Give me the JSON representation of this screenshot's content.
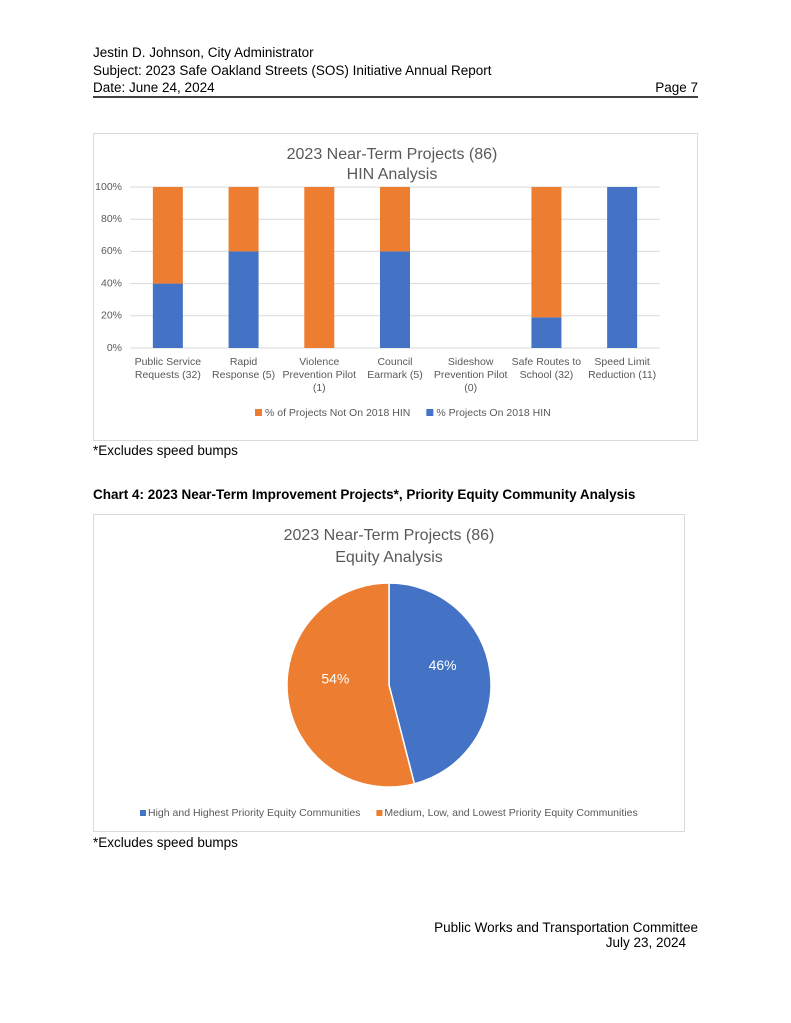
{
  "header": {
    "lines": [
      "Jestin D. Johnson, City Administrator",
      "Subject: 2023 Safe Oakland Streets (SOS) Initiative Annual Report",
      "Date:  June 24, 2024"
    ],
    "page": "Page 7"
  },
  "chart_data": [
    {
      "type": "bar",
      "stacked": true,
      "title": "2023 Near-Term Projects (86)",
      "subtitle": "HIN Analysis",
      "categories": [
        "Public Service Requests (32)",
        "Rapid Response (5)",
        "Violence Prevention Pilot (1)",
        "Council Earmark (5)",
        "Sideshow Prevention Pilot (0)",
        "Safe Routes to School (32)",
        "Speed Limit Reduction (11)"
      ],
      "series": [
        {
          "name": "% of Projects Not On 2018 HIN",
          "color": "#ed7d31",
          "values": [
            60,
            40,
            100,
            40,
            null,
            81,
            0
          ]
        },
        {
          "name": "% Projects On 2018 HIN",
          "color": "#4472c4",
          "values": [
            40,
            60,
            0,
            60,
            null,
            19,
            100
          ]
        }
      ],
      "ylim": [
        0,
        100
      ],
      "yticks": [
        {
          "value": 0,
          "label": "0%"
        },
        {
          "value": 20,
          "label": "20%"
        },
        {
          "value": 40,
          "label": "40%"
        },
        {
          "value": 60,
          "label": "60%"
        },
        {
          "value": 80,
          "label": "80%"
        },
        {
          "value": 100,
          "label": "100%"
        }
      ],
      "grid": true,
      "legend": "bottom"
    },
    {
      "type": "pie",
      "title": "2023 Near-Term Projects (86)",
      "subtitle": "Equity Analysis",
      "categories": [
        "High and Highest Priority Equity Communities",
        "Medium, Low, and Lowest Priority Equity Communities"
      ],
      "values": [
        46,
        54
      ],
      "value_labels": [
        "46%",
        "54%"
      ],
      "colors": [
        "#4472c4",
        "#ed7d31"
      ],
      "legend": "bottom"
    }
  ],
  "notes": [
    "*Excludes speed bumps",
    "*Excludes speed bumps"
  ],
  "caption": "Chart 4: 2023 Near-Term Improvement Projects*, Priority Equity Community Analysis",
  "footer": [
    "Public Works and Transportation Committee",
    "July 23, 2024"
  ]
}
